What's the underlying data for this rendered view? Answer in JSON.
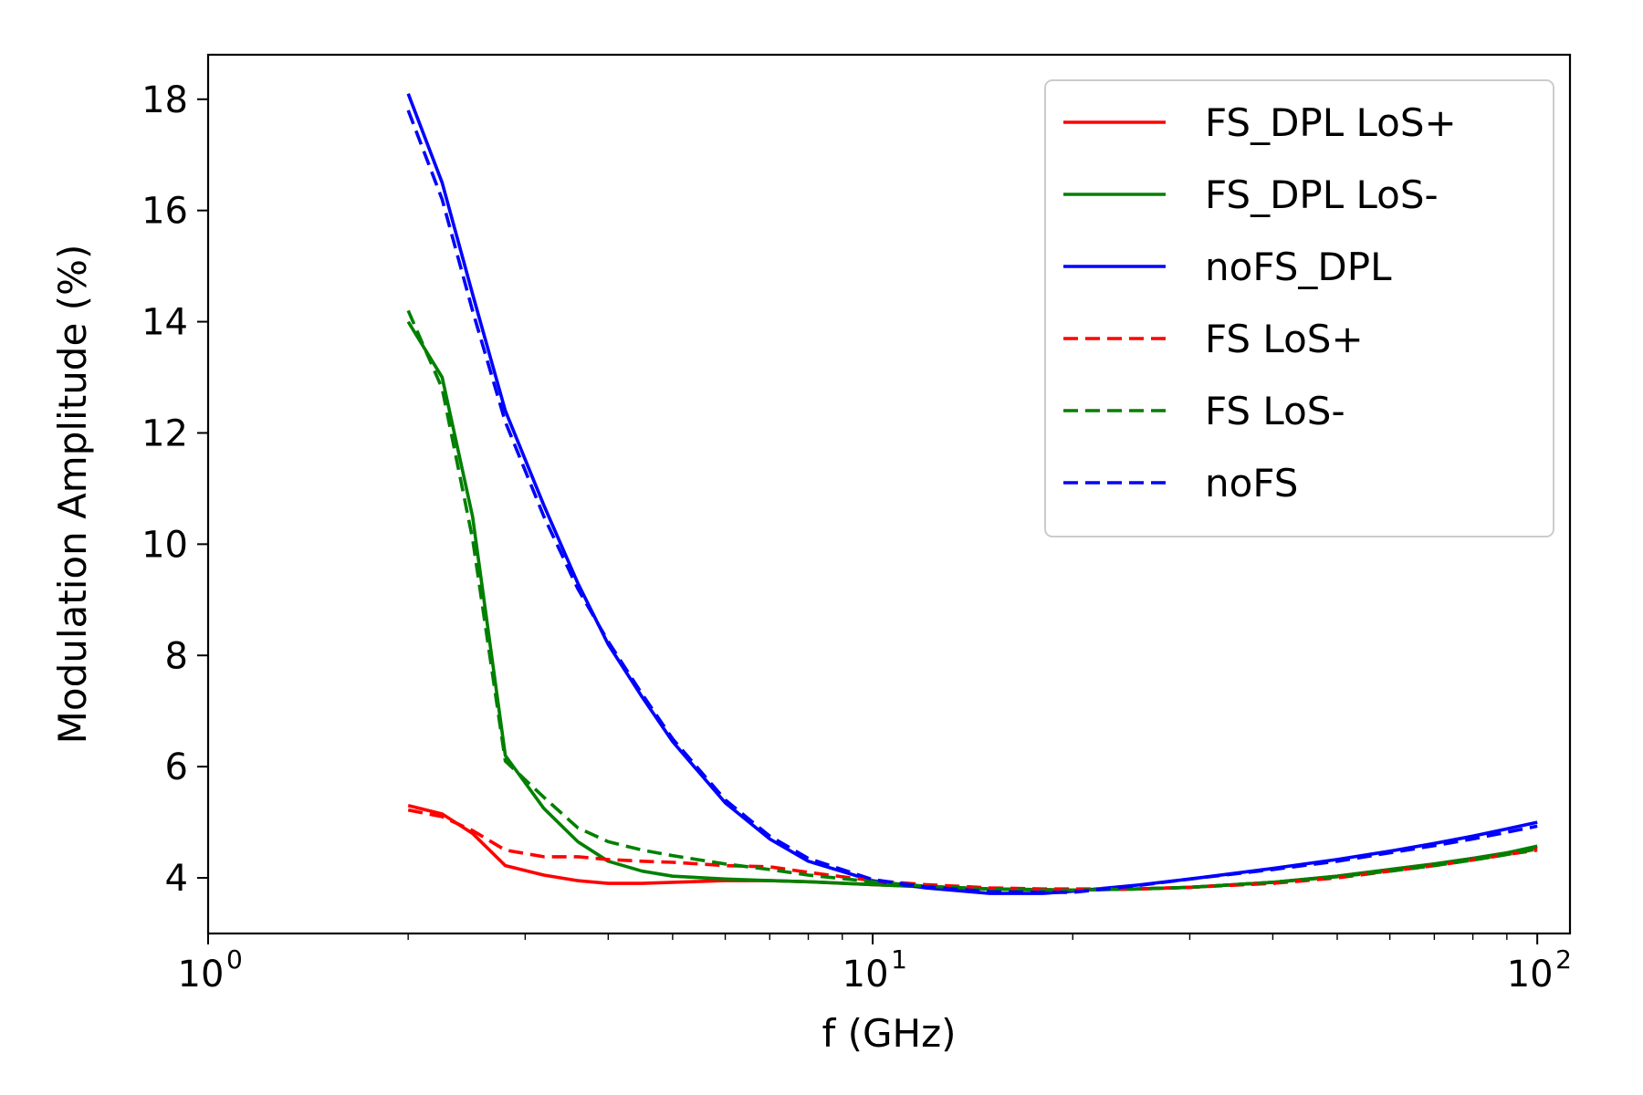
{
  "chart_data": {
    "type": "line",
    "xscale": "log",
    "xlim": [
      1,
      112
    ],
    "ylim": [
      3.0,
      18.8
    ],
    "xlabel": "f (GHz)",
    "ylabel": "Modulation Amplitude (%)",
    "x_ticks": [
      {
        "value": 1,
        "base": "10",
        "exp": "0"
      },
      {
        "value": 10,
        "base": "10",
        "exp": "1"
      },
      {
        "value": 100,
        "base": "10",
        "exp": "2"
      }
    ],
    "y_ticks": [
      4,
      6,
      8,
      10,
      12,
      14,
      16,
      18
    ],
    "legend_position": "upper-right",
    "grid": false,
    "series": [
      {
        "name": "FS_DPL LoS+",
        "color": "#ff0000",
        "style": "solid",
        "x": [
          2,
          2.25,
          2.5,
          2.8,
          3.2,
          3.6,
          4,
          4.5,
          5,
          6,
          7,
          8,
          10,
          12,
          15,
          18,
          20,
          25,
          30,
          40,
          50,
          60,
          70,
          80,
          90,
          100
        ],
        "y": [
          5.3,
          5.15,
          4.8,
          4.22,
          4.05,
          3.95,
          3.9,
          3.9,
          3.92,
          3.95,
          3.95,
          3.93,
          3.88,
          3.84,
          3.8,
          3.79,
          3.78,
          3.8,
          3.83,
          3.92,
          4.03,
          4.15,
          4.25,
          4.35,
          4.45,
          4.55
        ]
      },
      {
        "name": "FS_DPL LoS-",
        "color": "#008000",
        "style": "solid",
        "x": [
          2,
          2.25,
          2.5,
          2.8,
          3.2,
          3.6,
          4,
          4.5,
          5,
          6,
          7,
          8,
          10,
          12,
          15,
          18,
          20,
          25,
          30,
          40,
          50,
          60,
          70,
          80,
          90,
          100
        ],
        "y": [
          14.0,
          13.0,
          10.5,
          6.2,
          5.25,
          4.65,
          4.3,
          4.12,
          4.03,
          3.98,
          3.95,
          3.93,
          3.88,
          3.84,
          3.8,
          3.79,
          3.78,
          3.8,
          3.83,
          3.92,
          4.03,
          4.15,
          4.25,
          4.35,
          4.45,
          4.57
        ]
      },
      {
        "name": "noFS_DPL",
        "color": "#0000ff",
        "style": "solid",
        "x": [
          2,
          2.25,
          2.5,
          2.8,
          3.2,
          3.6,
          4,
          4.5,
          5,
          6,
          7,
          8,
          10,
          12,
          15,
          18,
          20,
          25,
          30,
          40,
          50,
          60,
          70,
          80,
          90,
          100
        ],
        "y": [
          18.1,
          16.5,
          14.5,
          12.4,
          10.7,
          9.3,
          8.2,
          7.25,
          6.45,
          5.35,
          4.7,
          4.3,
          3.95,
          3.82,
          3.72,
          3.72,
          3.76,
          3.87,
          3.98,
          4.17,
          4.33,
          4.48,
          4.62,
          4.75,
          4.88,
          5.0
        ]
      },
      {
        "name": "FS LoS+",
        "color": "#ff0000",
        "style": "dashed",
        "x": [
          2,
          2.25,
          2.5,
          2.8,
          3.2,
          3.6,
          4,
          4.5,
          5,
          6,
          7,
          8,
          10,
          12,
          15,
          18,
          20,
          25,
          30,
          40,
          50,
          60,
          70,
          80,
          90,
          100
        ],
        "y": [
          5.22,
          5.1,
          4.85,
          4.5,
          4.38,
          4.38,
          4.33,
          4.3,
          4.28,
          4.22,
          4.2,
          4.1,
          3.95,
          3.88,
          3.82,
          3.8,
          3.8,
          3.8,
          3.83,
          3.9,
          4.0,
          4.12,
          4.22,
          4.32,
          4.42,
          4.5
        ]
      },
      {
        "name": "FS LoS-",
        "color": "#008000",
        "style": "dashed",
        "x": [
          2,
          2.25,
          2.5,
          2.8,
          3.2,
          3.6,
          4,
          4.5,
          5,
          6,
          7,
          8,
          10,
          12,
          15,
          18,
          20,
          25,
          30,
          40,
          50,
          60,
          70,
          80,
          90,
          100
        ],
        "y": [
          14.2,
          12.8,
          10.1,
          6.1,
          5.45,
          4.9,
          4.65,
          4.5,
          4.4,
          4.25,
          4.15,
          4.05,
          3.93,
          3.85,
          3.8,
          3.78,
          3.78,
          3.8,
          3.83,
          3.92,
          4.02,
          4.12,
          4.22,
          4.32,
          4.42,
          4.52
        ]
      },
      {
        "name": "noFS",
        "color": "#0000ff",
        "style": "dashed",
        "x": [
          2,
          2.25,
          2.5,
          2.8,
          3.2,
          3.6,
          4,
          4.5,
          5,
          6,
          7,
          8,
          10,
          12,
          15,
          18,
          20,
          25,
          30,
          40,
          50,
          60,
          70,
          80,
          90,
          100
        ],
        "y": [
          17.8,
          16.2,
          14.2,
          12.2,
          10.5,
          9.2,
          8.25,
          7.3,
          6.5,
          5.4,
          4.75,
          4.35,
          3.97,
          3.84,
          3.75,
          3.74,
          3.74,
          3.86,
          3.98,
          4.15,
          4.3,
          4.45,
          4.58,
          4.7,
          4.82,
          4.93
        ]
      }
    ]
  }
}
